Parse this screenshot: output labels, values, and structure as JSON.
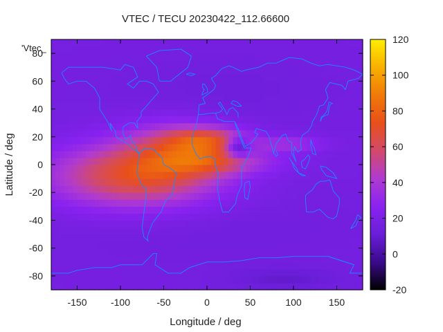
{
  "chart_data": {
    "type": "heatmap",
    "title": "VTEC / TECU 20230422_112.66600",
    "xlabel": "Longitude / deg",
    "ylabel": "Latitude / deg",
    "xlim": [
      -180,
      180
    ],
    "ylim": [
      -90,
      90
    ],
    "x_ticks": [
      -150,
      -100,
      -50,
      0,
      50,
      100,
      150
    ],
    "y_ticks": [
      -80,
      -60,
      -40,
      -20,
      0,
      20,
      40,
      60,
      80
    ],
    "colorbar": {
      "min": -20,
      "max": 120,
      "ticks": [
        -20,
        0,
        20,
        40,
        60,
        80,
        100,
        120
      ],
      "palette": [
        "#000000",
        "#3a0a8c",
        "#6a1ed8",
        "#8a22f0",
        "#b03bd0",
        "#d24a6a",
        "#e8501a",
        "#f07a08",
        "#f8b000",
        "#ffee00"
      ]
    },
    "key_label": "'Vtec_",
    "overlay": "continent coastlines",
    "background_value": 17,
    "anomalies": [
      {
        "lon": -85,
        "lat": -8,
        "lon_width": 95,
        "lat_width": 22,
        "value": 50
      },
      {
        "lon": -40,
        "lat": 10,
        "lon_width": 60,
        "lat_width": 20,
        "value": 30
      },
      {
        "lon": 0,
        "lat": 18,
        "lon_width": 45,
        "lat_width": 9,
        "value": 40
      },
      {
        "lon": 0,
        "lat": 3,
        "lon_width": 45,
        "lat_width": 10,
        "value": 22
      },
      {
        "lon": 95,
        "lat": 15,
        "lon_width": 40,
        "lat_width": 6,
        "value": 18
      },
      {
        "lon": 40,
        "lat": 2,
        "lon_width": 60,
        "lat_width": 8,
        "value": 12
      },
      {
        "lon": 0,
        "lat": -45,
        "lon_width": 200,
        "lat_width": 25,
        "value": -2
      },
      {
        "lon": 90,
        "lat": -82,
        "lon_width": 60,
        "lat_width": 8,
        "value": -8
      },
      {
        "lon": 20,
        "lat": 55,
        "lon_width": 120,
        "lat_width": 20,
        "value": -3
      }
    ],
    "void": {
      "lon": 38,
      "lat": 13,
      "lon_width": 14,
      "lat_width": 7,
      "value": 14
    }
  }
}
